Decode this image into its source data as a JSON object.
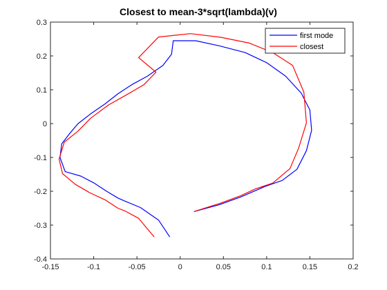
{
  "chart_data": {
    "type": "line",
    "title": "Closest to mean-3*sqrt(lambda)(v)",
    "xlabel": "",
    "ylabel": "",
    "xlim": [
      -0.15,
      0.2
    ],
    "ylim": [
      -0.4,
      0.3
    ],
    "xticks": [
      -0.15,
      -0.1,
      -0.05,
      0,
      0.05,
      0.1,
      0.15,
      0.2
    ],
    "yticks": [
      -0.4,
      -0.3,
      -0.2,
      -0.1,
      0,
      0.1,
      0.2,
      0.3
    ],
    "xtick_labels": [
      "-0.15",
      "-0.1",
      "-0.05",
      "0",
      "0.05",
      "0.1",
      "0.15",
      "0.2"
    ],
    "ytick_labels": [
      "-0.4",
      "-0.3",
      "-0.2",
      "-0.1",
      "0",
      "0.1",
      "0.2",
      "0.3"
    ],
    "grid": false,
    "legend_position": "top-right",
    "series": [
      {
        "name": "first mode",
        "color": "#0000ff",
        "x": [
          -0.012,
          -0.025,
          -0.046,
          -0.065,
          -0.072,
          -0.085,
          -0.1,
          -0.115,
          -0.133,
          -0.139,
          -0.137,
          -0.128,
          -0.118,
          -0.104,
          -0.087,
          -0.072,
          -0.056,
          -0.038,
          -0.02,
          -0.01,
          -0.008,
          0.018,
          0.045,
          0.075,
          0.1,
          0.122,
          0.14,
          0.15,
          0.152,
          0.146,
          0.135,
          0.118,
          0.098,
          0.07,
          0.045,
          0.016
        ],
        "y": [
          -0.335,
          -0.285,
          -0.248,
          -0.228,
          -0.22,
          -0.2,
          -0.175,
          -0.155,
          -0.142,
          -0.1,
          -0.06,
          -0.03,
          0.0,
          0.028,
          0.058,
          0.088,
          0.115,
          0.14,
          0.172,
          0.205,
          0.245,
          0.245,
          0.23,
          0.21,
          0.18,
          0.14,
          0.09,
          0.04,
          -0.02,
          -0.08,
          -0.135,
          -0.168,
          -0.186,
          -0.217,
          -0.24,
          -0.26
        ]
      },
      {
        "name": "closest",
        "color": "#ff0000",
        "x": [
          -0.03,
          -0.048,
          -0.064,
          -0.072,
          -0.087,
          -0.104,
          -0.121,
          -0.136,
          -0.14,
          -0.134,
          -0.118,
          -0.104,
          -0.083,
          -0.062,
          -0.042,
          -0.028,
          -0.048,
          -0.025,
          0.012,
          0.047,
          0.08,
          0.107,
          0.13,
          0.143,
          0.146,
          0.137,
          0.127,
          0.107,
          0.087,
          0.07,
          0.046,
          0.017
        ],
        "y": [
          -0.335,
          -0.28,
          -0.258,
          -0.25,
          -0.225,
          -0.205,
          -0.18,
          -0.148,
          -0.105,
          -0.055,
          -0.022,
          0.015,
          0.055,
          0.085,
          0.115,
          0.152,
          0.195,
          0.256,
          0.266,
          0.255,
          0.238,
          0.21,
          0.172,
          0.093,
          0.002,
          -0.072,
          -0.133,
          -0.176,
          -0.193,
          -0.213,
          -0.236,
          -0.259
        ]
      }
    ]
  }
}
